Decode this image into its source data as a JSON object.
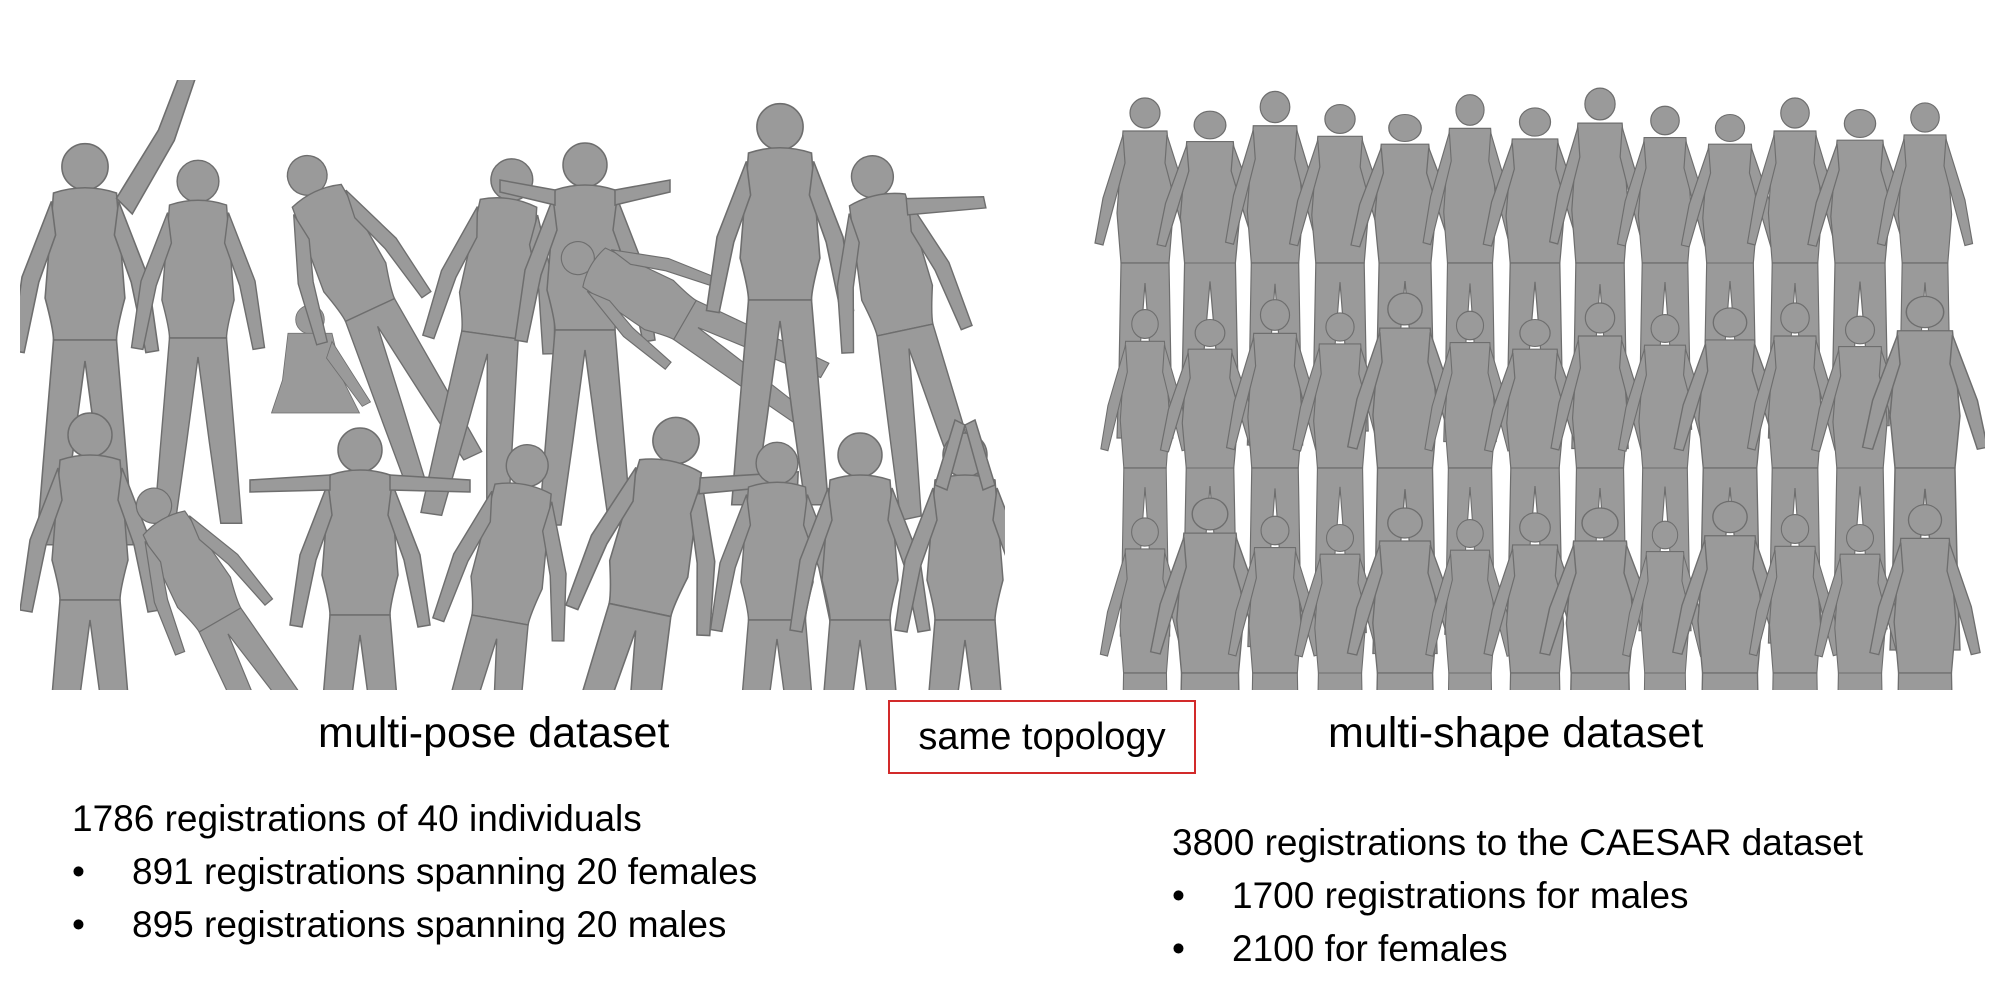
{
  "left": {
    "caption": "multi-pose dataset",
    "summary": "1786 registrations of 40 individuals",
    "bullets": [
      "891 registrations spanning 20 females",
      "895 registrations spanning 20 males"
    ]
  },
  "center": {
    "label": "same topology",
    "border_color": "#d22a2a"
  },
  "right": {
    "caption": "multi-shape dataset",
    "summary": "3800 registrations to the CAESAR dataset",
    "bullets": [
      "1700 registrations for males",
      "2100 for females"
    ]
  },
  "bullet_glyph": "•",
  "mesh_color": "#9a9a9a"
}
